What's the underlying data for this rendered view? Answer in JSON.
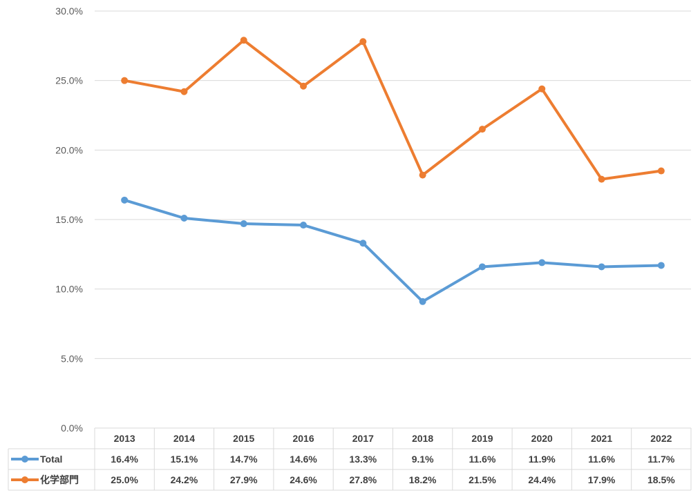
{
  "chart_data": {
    "type": "line",
    "title": "",
    "xlabel": "",
    "ylabel": "",
    "categories": [
      "2013",
      "2014",
      "2015",
      "2016",
      "2017",
      "2018",
      "2019",
      "2020",
      "2021",
      "2022"
    ],
    "ylim": [
      0,
      30
    ],
    "y_ticks": [
      "0.0%",
      "5.0%",
      "10.0%",
      "15.0%",
      "20.0%",
      "25.0%",
      "30.0%"
    ],
    "y_tick_values": [
      0,
      5,
      10,
      15,
      20,
      25,
      30
    ],
    "grid": true,
    "legend_placement": "data-table",
    "series": [
      {
        "name": "Total",
        "color": "#5B9BD5",
        "values": [
          16.4,
          15.1,
          14.7,
          14.6,
          13.3,
          9.1,
          11.6,
          11.9,
          11.6,
          11.7
        ],
        "labels": [
          "16.4%",
          "15.1%",
          "14.7%",
          "14.6%",
          "13.3%",
          "9.1%",
          "11.6%",
          "11.9%",
          "11.6%",
          "11.7%"
        ]
      },
      {
        "name": "化学部門",
        "color": "#ED7D31",
        "values": [
          25.0,
          24.2,
          27.9,
          24.6,
          27.8,
          18.2,
          21.5,
          24.4,
          17.9,
          18.5
        ],
        "labels": [
          "25.0%",
          "24.2%",
          "27.9%",
          "24.6%",
          "27.8%",
          "18.2%",
          "21.5%",
          "24.4%",
          "17.9%",
          "18.5%"
        ]
      }
    ]
  }
}
